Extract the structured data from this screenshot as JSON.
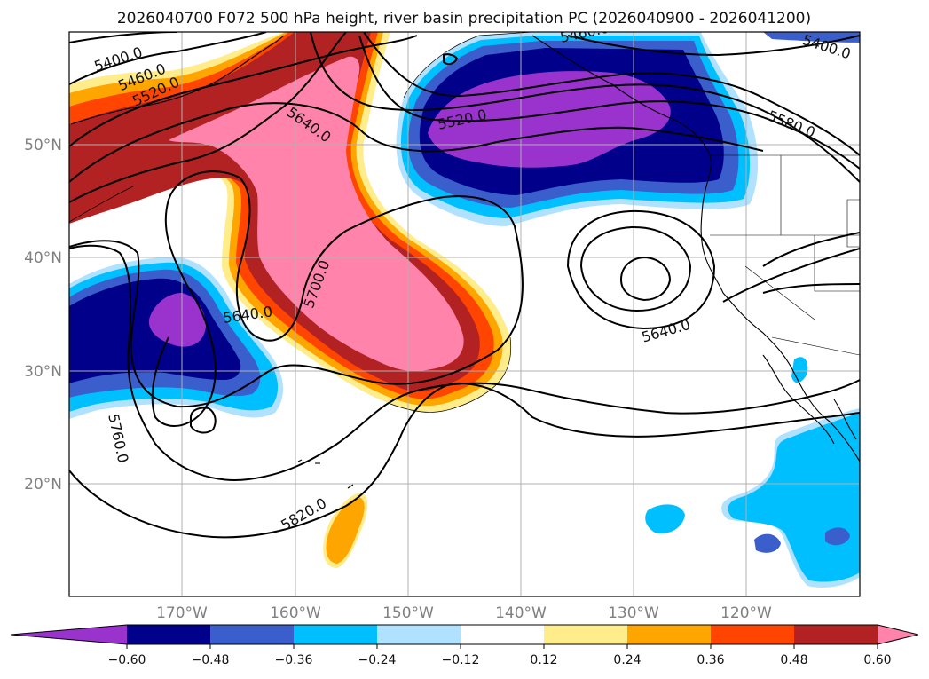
{
  "title": "2026040700 F072 500 hPa height, river basin precipitation PC (2026040900 - 2026041200)",
  "map": {
    "lat_labels": [
      "50°N",
      "40°N",
      "30°N",
      "20°N"
    ],
    "lon_labels": [
      "170°W",
      "160°W",
      "150°W",
      "140°W",
      "130°W",
      "120°W"
    ],
    "extent": {
      "lon": [
        -180,
        -110
      ],
      "lat": [
        10,
        60
      ]
    }
  },
  "contours": {
    "variable": "500 hPa height",
    "labels": [
      "5400.0",
      "5460.0",
      "5520.0",
      "5640.0",
      "5520.0",
      "5580.0",
      "5400.0",
      "5640.0",
      "5700.0",
      "5640.0",
      "5760.0",
      "5820.0"
    ],
    "top_partial_label": "5460.0"
  },
  "colorbar": {
    "ticks": [
      "−0.60",
      "−0.48",
      "−0.36",
      "−0.24",
      "−0.12",
      "0.12",
      "0.24",
      "0.36",
      "0.48",
      "0.60"
    ],
    "colors": [
      "#9a32cd",
      "#00008b",
      "#3a5fcd",
      "#00bfff",
      "#b0e2ff",
      "#ffffff",
      "#ffec8b",
      "#ffa500",
      "#ff4500",
      "#b22222",
      "#ff83aa"
    ]
  }
}
